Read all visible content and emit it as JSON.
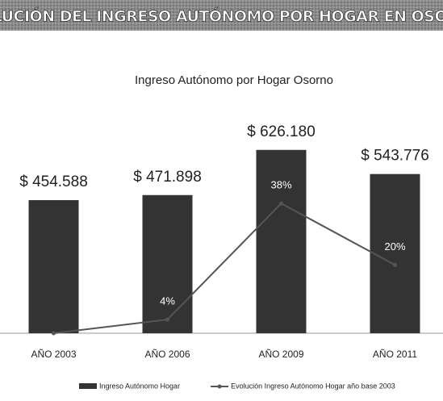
{
  "header": {
    "title": "EVOLUCIÓN DEL INGRESO AUTÓNOMO POR HOGAR EN OSORNO"
  },
  "chart_data": {
    "type": "bar",
    "title": "Ingreso Autónomo por Hogar Osorno",
    "categories": [
      "AÑO 2003",
      "AÑO 2006",
      "AÑO 2009",
      "AÑO 2011"
    ],
    "series": [
      {
        "name": "Ingreso Autónomo Hogar",
        "color": "#333333",
        "values": [
          454588,
          471898,
          626180,
          543776
        ],
        "value_labels": [
          "$ 454.588",
          "$ 471.898",
          "$ 626.180",
          "$ 543.776"
        ]
      },
      {
        "name": "Evolución Ingreso Autónomo Hogar año base 2003",
        "type": "line",
        "axis": "y2",
        "color": "#555555",
        "values": [
          0,
          4,
          38,
          20
        ],
        "value_labels": [
          null,
          "4%",
          "38%",
          "20%"
        ]
      }
    ],
    "ylim": [
      0,
      700000
    ],
    "y2lim": [
      0,
      60
    ]
  }
}
